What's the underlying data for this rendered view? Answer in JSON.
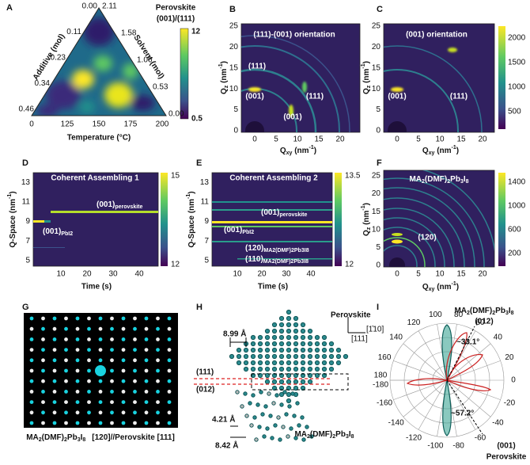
{
  "formula": [
    {
      "text": "MA"
    },
    {
      "text": "2",
      "sub": true
    },
    {
      "text": "(DMF)"
    },
    {
      "text": "2",
      "sub": true
    },
    {
      "text": "Pb"
    },
    {
      "text": "3",
      "sub": true
    },
    {
      "text": "I"
    },
    {
      "text": "8",
      "sub": true
    }
  ],
  "qz_label": [
    {
      "text": "Q"
    },
    {
      "text": "z",
      "sub": true
    },
    {
      "text": " (nm"
    },
    {
      "text": "-1",
      "sup": true
    },
    {
      "text": ")"
    }
  ],
  "qxy_label": [
    {
      "text": "Q"
    },
    {
      "text": "xy",
      "sub": true
    },
    {
      "text": " (nm"
    },
    {
      "text": "-1",
      "sup": true
    },
    {
      "text": ")"
    }
  ],
  "qspace_label": [
    {
      "text": "Q-Space (nm"
    },
    {
      "text": "-1",
      "sup": true
    },
    {
      "text": ")"
    }
  ],
  "time_label": "Time (s)",
  "panels": {
    "A": {
      "letter": "A",
      "bottom_ticks": [
        0,
        125,
        150,
        175,
        200
      ],
      "left_ticks": [
        "0.00",
        "0.11",
        "0.23",
        "0.34",
        "0.46"
      ],
      "right_ticks": [
        "2.11",
        "1.58",
        "1.06",
        "0.53",
        "0.00"
      ],
      "x_title": "Temperature (°C)",
      "left_title": "Additive (mol)",
      "right_title": "Solvent (mol)",
      "colorbar_title": [
        "Perovskite",
        "(001)/(111)"
      ],
      "colorbar_ticks": [
        12,
        0.5
      ]
    },
    "B": {
      "letter": "B",
      "title": "(111)-(001) orientation",
      "peaks": [
        "(111)",
        "(001)",
        "(111)",
        "(001)"
      ],
      "xticks": [
        0,
        5,
        10,
        15,
        20
      ],
      "yticks": [
        0,
        5,
        10,
        15,
        20,
        25
      ]
    },
    "C": {
      "letter": "C",
      "title": "(001) orientation",
      "peaks": [
        "(001)",
        "(111)"
      ],
      "xticks": [
        0,
        5,
        10,
        15,
        20
      ],
      "yticks": [
        0,
        5,
        10,
        15,
        20,
        25
      ],
      "colorbar_ticks": [
        2000,
        1500,
        1000,
        500
      ]
    },
    "D": {
      "letter": "D",
      "title": "Coherent Assembling 1",
      "labels": [
        [
          {
            "text": "(001)"
          },
          {
            "text": "perovskite",
            "sub": true
          }
        ],
        [
          {
            "text": "(001)"
          },
          {
            "text": "PbI",
            "sub": true
          },
          {
            "text": "2",
            "sub": true
          }
        ]
      ],
      "xticks": [
        10,
        20,
        30,
        40
      ],
      "yticks": [
        5,
        7,
        9,
        11,
        13
      ],
      "colorbar_ticks": [
        15,
        12
      ]
    },
    "E": {
      "letter": "E",
      "title": "Coherent Assembling 2",
      "labels": [
        [
          {
            "text": "(001)"
          },
          {
            "text": "perovskite",
            "sub": true
          }
        ],
        [
          {
            "text": "(001)"
          },
          {
            "text": "PbI",
            "sub": true
          },
          {
            "text": "2",
            "sub": true
          }
        ]
      ],
      "phase_labels": [
        "(120)",
        "(110)"
      ],
      "xticks": [
        10,
        20,
        30,
        40
      ],
      "yticks": [
        5,
        7,
        9,
        11,
        13
      ],
      "colorbar_ticks": [
        13.5,
        12
      ]
    },
    "F": {
      "letter": "F",
      "peak": "(120)",
      "xticks": [
        0,
        5,
        10,
        15,
        20
      ],
      "yticks": [
        0,
        5,
        10,
        15,
        20,
        25
      ],
      "colorbar_ticks": [
        1400,
        1000,
        600,
        200
      ]
    },
    "G": {
      "letter": "G",
      "caption_rest": "[120]//Perovskite [111]"
    },
    "H": {
      "letter": "H",
      "d1": "8.99 Å",
      "plane1": "(111)",
      "plane2": "(012)",
      "d2": "4.21 Å",
      "d3": "8.42 Å",
      "perovskite": "Perovskite",
      "dir1": "[1̄10]",
      "dir2": "[111]"
    },
    "I": {
      "letter": "I",
      "top_plane": "(012)",
      "angle1": "~33.1°",
      "angle2": "~57.2°",
      "bottom_plane": "(001)",
      "bottom_name": "Perovskite",
      "angle_ticks": [
        0,
        20,
        40,
        60,
        80,
        100,
        120,
        140,
        160,
        180,
        -180,
        -160,
        -140,
        -120,
        -100,
        -80,
        -60,
        -40,
        -20
      ]
    }
  }
}
